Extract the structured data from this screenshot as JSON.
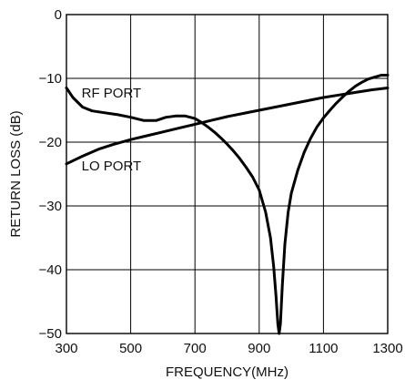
{
  "chart_data": {
    "type": "line",
    "title": "",
    "xlabel": "FREQUENCY(MHz)",
    "ylabel": "RETURN LOSS (dB)",
    "xlim": [
      300,
      1300
    ],
    "ylim": [
      -50,
      0
    ],
    "x_ticks": [
      300,
      500,
      700,
      900,
      1100,
      1300
    ],
    "y_ticks": [
      0,
      -10,
      -20,
      -30,
      -40,
      -50
    ],
    "x_tick_labels": [
      "300",
      "500",
      "700",
      "900",
      "1100",
      "1300"
    ],
    "y_tick_labels": [
      "0",
      "−10",
      "−20",
      "−30",
      "−40",
      "−50"
    ],
    "grid": true,
    "legend": "none",
    "colors": {
      "line": "#000000",
      "grid": "#000000",
      "background": "#ffffff"
    },
    "series": [
      {
        "name": "RF PORT",
        "x": [
          300,
          320,
          350,
          380,
          420,
          460,
          500,
          540,
          580,
          610,
          640,
          670,
          700,
          720,
          740,
          760,
          780,
          800,
          820,
          840,
          860,
          880,
          900,
          920,
          935,
          945,
          952,
          958,
          962,
          966,
          972,
          980,
          990,
          1000,
          1020,
          1040,
          1060,
          1080,
          1100,
          1120,
          1140,
          1160,
          1180,
          1200,
          1220,
          1240,
          1260,
          1280,
          1300
        ],
        "y": [
          -11.5,
          -13.0,
          -14.5,
          -15.1,
          -15.4,
          -15.7,
          -16.1,
          -16.6,
          -16.6,
          -16.1,
          -15.9,
          -15.9,
          -16.3,
          -16.9,
          -17.6,
          -18.4,
          -19.3,
          -20.3,
          -21.4,
          -22.6,
          -24.0,
          -25.5,
          -27.5,
          -31.0,
          -35.0,
          -39.5,
          -44.0,
          -48.5,
          -50.0,
          -48.5,
          -42.5,
          -36.0,
          -31.0,
          -28.0,
          -24.4,
          -21.6,
          -19.4,
          -17.6,
          -16.2,
          -15.0,
          -13.9,
          -12.9,
          -12.0,
          -11.2,
          -10.6,
          -10.1,
          -9.8,
          -9.5,
          -9.5
        ]
      },
      {
        "name": "LO PORT",
        "x": [
          300,
          350,
          400,
          450,
          500,
          550,
          600,
          650,
          700,
          750,
          800,
          850,
          900,
          950,
          1000,
          1050,
          1100,
          1150,
          1200,
          1250,
          1300
        ],
        "y": [
          -23.4,
          -22.2,
          -21.1,
          -20.3,
          -19.6,
          -19.0,
          -18.4,
          -17.8,
          -17.2,
          -16.6,
          -16.0,
          -15.5,
          -15.0,
          -14.5,
          -14.0,
          -13.5,
          -13.0,
          -12.6,
          -12.2,
          -11.8,
          -11.5
        ]
      }
    ],
    "annotations": [
      {
        "text": "RF PORT",
        "x": 440,
        "y": -12.3
      },
      {
        "text": "LO PORT",
        "x": 440,
        "y": -23.7
      }
    ]
  }
}
